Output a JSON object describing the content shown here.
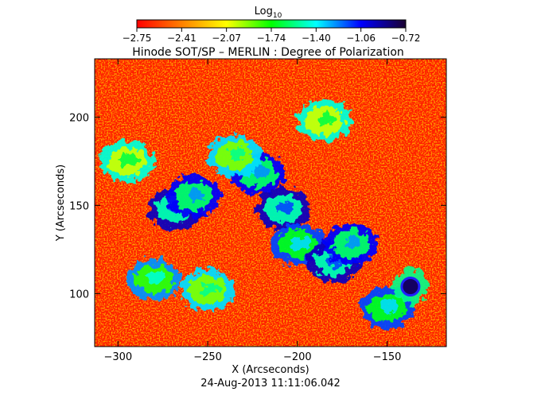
{
  "chart_data": {
    "type": "heatmap",
    "title": "Hinode SOT/SP – MERLIN : Degree of Polarization",
    "xlabel": "X (Arcseconds)",
    "ylabel": "Y (Arcseconds)",
    "timestamp": "24-Aug-2013 11:11:06.042",
    "colorbar": {
      "label_main": "Log",
      "label_sub": "10",
      "min": -2.75,
      "max": -0.72,
      "colormap": "rainbow",
      "ticks": [
        "−2.75",
        "−2.41",
        "−2.07",
        "−1.74",
        "−1.40",
        "−1.06",
        "−0.72"
      ],
      "colors": [
        "#ff0000",
        "#ff8000",
        "#ffff00",
        "#00ff00",
        "#00ffff",
        "#0000ff",
        "#1a0030"
      ]
    },
    "xlim": [
      -313,
      -117
    ],
    "ylim": [
      70,
      233
    ],
    "xticks": [
      -300,
      -250,
      -200,
      -150
    ],
    "xtick_labels": [
      "−300",
      "−250",
      "−200",
      "−150"
    ],
    "yticks": [
      100,
      150,
      200
    ],
    "ytick_labels": [
      "100",
      "150",
      "200"
    ],
    "background_level": -2.6,
    "network_regions": [
      {
        "x": -268,
        "y": 148,
        "level": -1.5
      },
      {
        "x": -258,
        "y": 155,
        "level": -1.6
      },
      {
        "x": -222,
        "y": 168,
        "level": -1.6
      },
      {
        "x": -208,
        "y": 148,
        "level": -1.5
      },
      {
        "x": -200,
        "y": 128,
        "level": -1.7
      },
      {
        "x": -180,
        "y": 118,
        "level": -1.5
      },
      {
        "x": -170,
        "y": 128,
        "level": -1.6
      },
      {
        "x": -280,
        "y": 108,
        "level": -1.8
      },
      {
        "x": -250,
        "y": 102,
        "level": -1.9
      },
      {
        "x": -185,
        "y": 198,
        "level": -2.0
      },
      {
        "x": -150,
        "y": 92,
        "level": -1.7
      },
      {
        "x": -295,
        "y": 175,
        "level": -2.0
      },
      {
        "x": -235,
        "y": 178,
        "level": -1.9
      }
    ],
    "pore": {
      "x": -137,
      "y": 104,
      "level": -0.8
    }
  }
}
